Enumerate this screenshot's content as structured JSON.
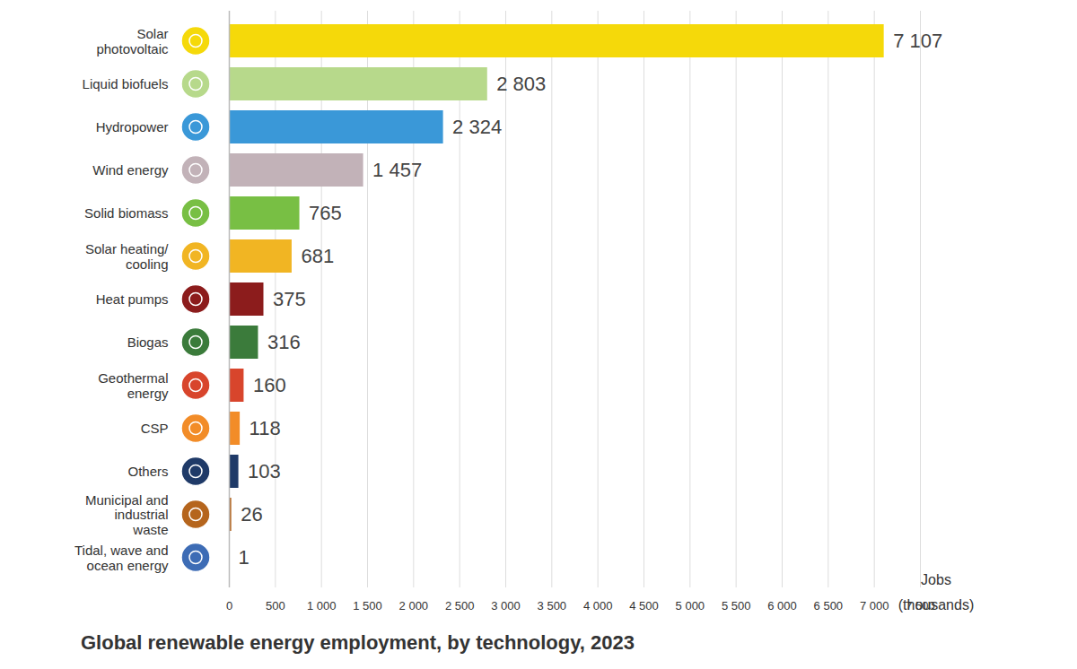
{
  "chart_data": {
    "type": "bar",
    "orientation": "horizontal",
    "title": "Global renewable energy employment, by technology, 2023",
    "xlabel": "Jobs (thousands)",
    "categories": [
      "Solar photovoltaic",
      "Liquid biofuels",
      "Hydropower",
      "Wind energy",
      "Solid biomass",
      "Solar heating/ cooling",
      "Heat pumps",
      "Biogas",
      "Geothermal energy",
      "CSP",
      "Others",
      "Municipal and industrial waste",
      "Tidal, wave and ocean energy"
    ],
    "values": [
      7107,
      2803,
      2324,
      1457,
      765,
      681,
      375,
      316,
      160,
      118,
      103,
      26,
      1
    ],
    "value_labels": [
      "7 107",
      "2 803",
      "2 324",
      "1 457",
      "765",
      "681",
      "375",
      "316",
      "160",
      "118",
      "103",
      "26",
      "1"
    ],
    "colors": [
      "#f5d90a",
      "#b7d98b",
      "#3a98d8",
      "#c2b2b8",
      "#78bf44",
      "#f1b523",
      "#8c1c1c",
      "#3b7b3b",
      "#d8452c",
      "#f28c28",
      "#1f3a68",
      "#b5651d",
      "#3d6cb5"
    ],
    "xlim": [
      0,
      7500
    ],
    "xticks": [
      0,
      500,
      {
        "value": 1000,
        "label": "1 000"
      },
      {
        "value": 1500,
        "label": "1 500"
      },
      {
        "value": 2000,
        "label": "2 000"
      },
      {
        "value": 2500,
        "label": "2 500"
      },
      {
        "value": 3000,
        "label": "3 000"
      },
      {
        "value": 3500,
        "label": "3 500"
      },
      {
        "value": 4000,
        "label": "4 000"
      },
      {
        "value": 4500,
        "label": "4 500"
      },
      {
        "value": 5000,
        "label": "5 000"
      },
      {
        "value": 5500,
        "label": "5 500"
      },
      {
        "value": 6000,
        "label": "6 000"
      },
      {
        "value": 6500,
        "label": "6 500"
      },
      {
        "value": 7000,
        "label": "7 000"
      },
      {
        "value": 7500,
        "label": "7 500"
      }
    ],
    "grid": true,
    "data_labels": true
  }
}
